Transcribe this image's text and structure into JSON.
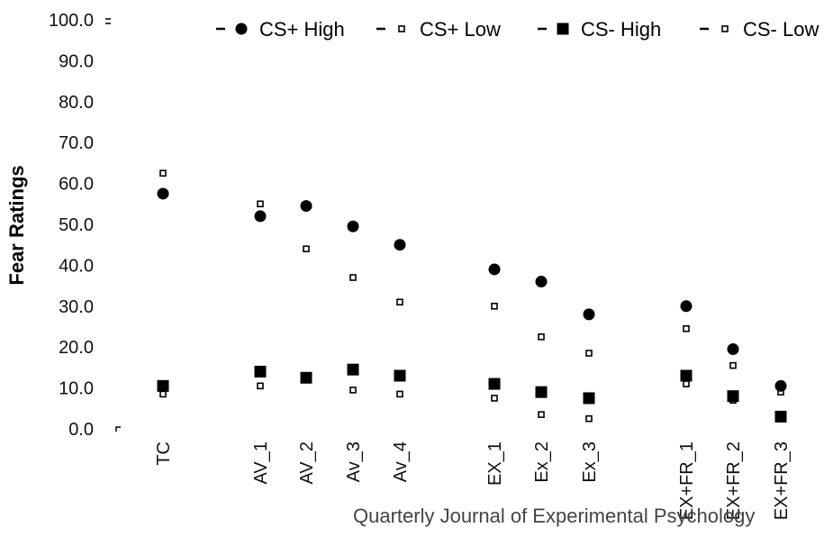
{
  "chart_data": {
    "type": "scatter",
    "ylabel": "Fear Ratings",
    "xlabel": "",
    "ylim": [
      0,
      100
    ],
    "yticks": [
      "0.0",
      "10.0",
      "20.0",
      "30.0",
      "40.0",
      "50.0",
      "60.0",
      "70.0",
      "80.0",
      "90.0",
      "100.0"
    ],
    "categories": [
      "TC",
      "AV_1",
      "AV_2",
      "Av_3",
      "Av_4",
      "EX_1",
      "Ex_2",
      "Ex_3",
      "EX+FR_1",
      "EX+FR_2",
      "EX+FR_3"
    ],
    "grid": false,
    "legend_position": "top",
    "series": [
      {
        "name": "CS+ High",
        "marker": "filled-circle",
        "values": [
          57.5,
          52.0,
          54.5,
          49.5,
          45.0,
          39.0,
          36.0,
          28.0,
          30.0,
          19.5,
          10.5
        ]
      },
      {
        "name": "CS+ Low",
        "marker": "open-square",
        "values": [
          62.5,
          55.0,
          44.0,
          37.0,
          31.0,
          30.0,
          22.5,
          18.5,
          24.5,
          15.5,
          9.0
        ]
      },
      {
        "name": "CS- High",
        "marker": "filled-square",
        "values": [
          10.5,
          14.0,
          12.5,
          14.5,
          13.0,
          11.0,
          9.0,
          7.5,
          13.0,
          8.0,
          3.0
        ]
      },
      {
        "name": "CS- Low",
        "marker": "open-square",
        "values": [
          8.5,
          10.5,
          12.5,
          9.5,
          8.5,
          7.5,
          3.5,
          2.5,
          11.0,
          7.0,
          2.5
        ]
      }
    ]
  },
  "watermark": "Quarterly Journal of Experimental Psychology"
}
